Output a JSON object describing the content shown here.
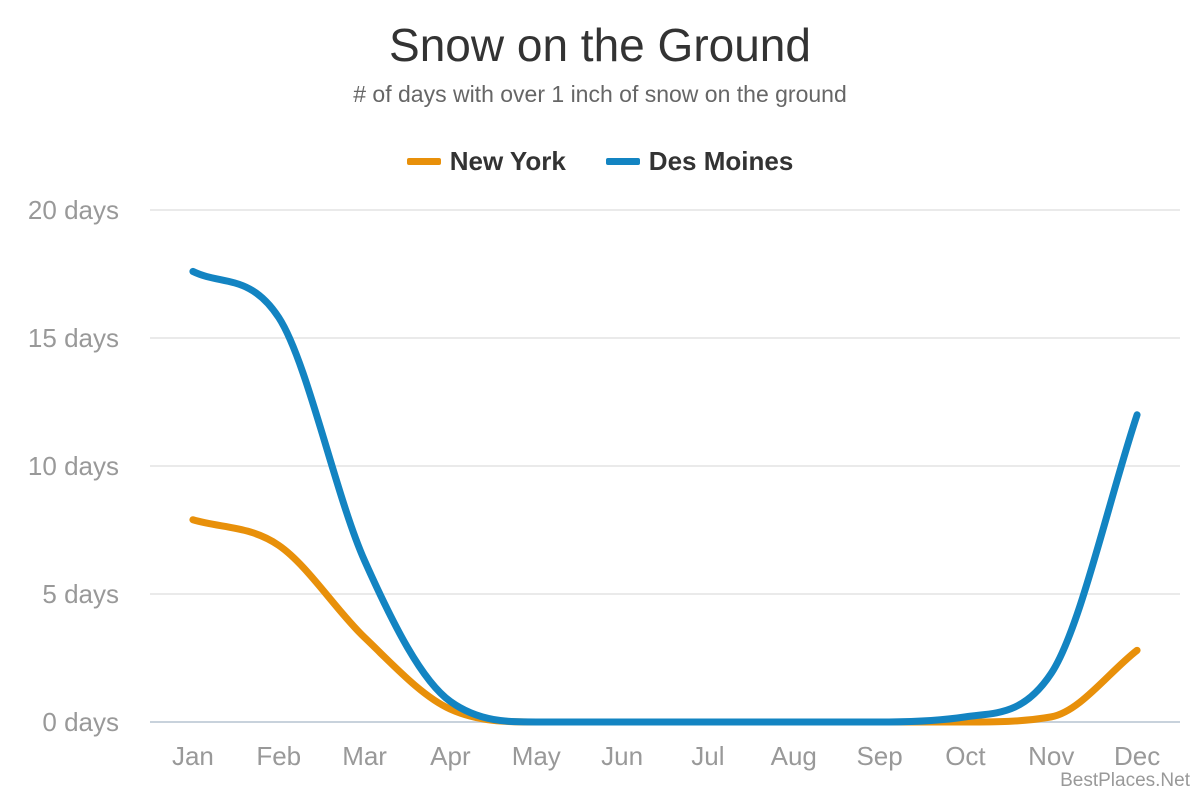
{
  "chart_data": {
    "type": "line",
    "title": "Snow on the Ground",
    "subtitle": "# of days with over 1 inch of snow on the ground",
    "categories": [
      "Jan",
      "Feb",
      "Mar",
      "Apr",
      "May",
      "Jun",
      "Jul",
      "Aug",
      "Sep",
      "Oct",
      "Nov",
      "Dec"
    ],
    "series": [
      {
        "name": "New York",
        "color": "#e8900a",
        "values": [
          7.9,
          6.9,
          3.3,
          0.5,
          0.0,
          0.0,
          0.0,
          0.0,
          0.0,
          0.0,
          0.2,
          2.8
        ]
      },
      {
        "name": "Des Moines",
        "color": "#1384c2",
        "values": [
          17.6,
          15.8,
          6.3,
          0.8,
          0.0,
          0.0,
          0.0,
          0.0,
          0.0,
          0.2,
          1.9,
          12.0
        ]
      }
    ],
    "yticks": [
      {
        "value": 0,
        "label": "0 days"
      },
      {
        "value": 5,
        "label": "5 days"
      },
      {
        "value": 10,
        "label": "10 days"
      },
      {
        "value": 15,
        "label": "15 days"
      },
      {
        "value": 20,
        "label": "20 days"
      }
    ],
    "ylim": [
      0,
      20
    ],
    "grid": true,
    "legend_position": "top-center",
    "xlabel": "",
    "ylabel": ""
  },
  "credit": "BestPlaces.Net"
}
